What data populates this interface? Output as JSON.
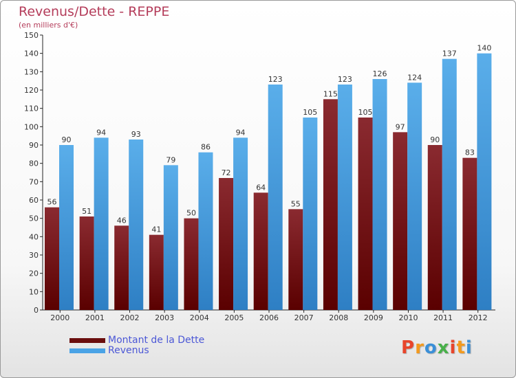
{
  "chart_data": {
    "type": "bar",
    "title": "Revenus/Dette - REPPE",
    "subtitle": "(en milliers d'€)",
    "categories": [
      "2000",
      "2001",
      "2002",
      "2003",
      "2004",
      "2005",
      "2006",
      "2007",
      "2008",
      "2009",
      "2010",
      "2011",
      "2012"
    ],
    "series": [
      {
        "name": "Montant de la Dette",
        "color": "#7a1414",
        "values": [
          56,
          51,
          46,
          41,
          50,
          72,
          64,
          55,
          115,
          105,
          97,
          90,
          83
        ]
      },
      {
        "name": "Revenus",
        "color": "#4aa3e6",
        "values": [
          90,
          94,
          93,
          79,
          86,
          94,
          123,
          105,
          123,
          126,
          124,
          137,
          140
        ]
      }
    ],
    "ylim": [
      0,
      150
    ],
    "y_ticks": [
      0,
      10,
      20,
      30,
      40,
      50,
      60,
      70,
      80,
      90,
      100,
      110,
      120,
      130,
      140,
      150
    ],
    "grid": false,
    "legend_position": "bottom-left"
  },
  "logo": {
    "text": "Proxiti",
    "letter_colors": [
      "#e8452b",
      "#f39a1e",
      "#3a8fd8",
      "#48b04a",
      "#e8452b",
      "#f39a1e",
      "#3a8fd8"
    ]
  }
}
